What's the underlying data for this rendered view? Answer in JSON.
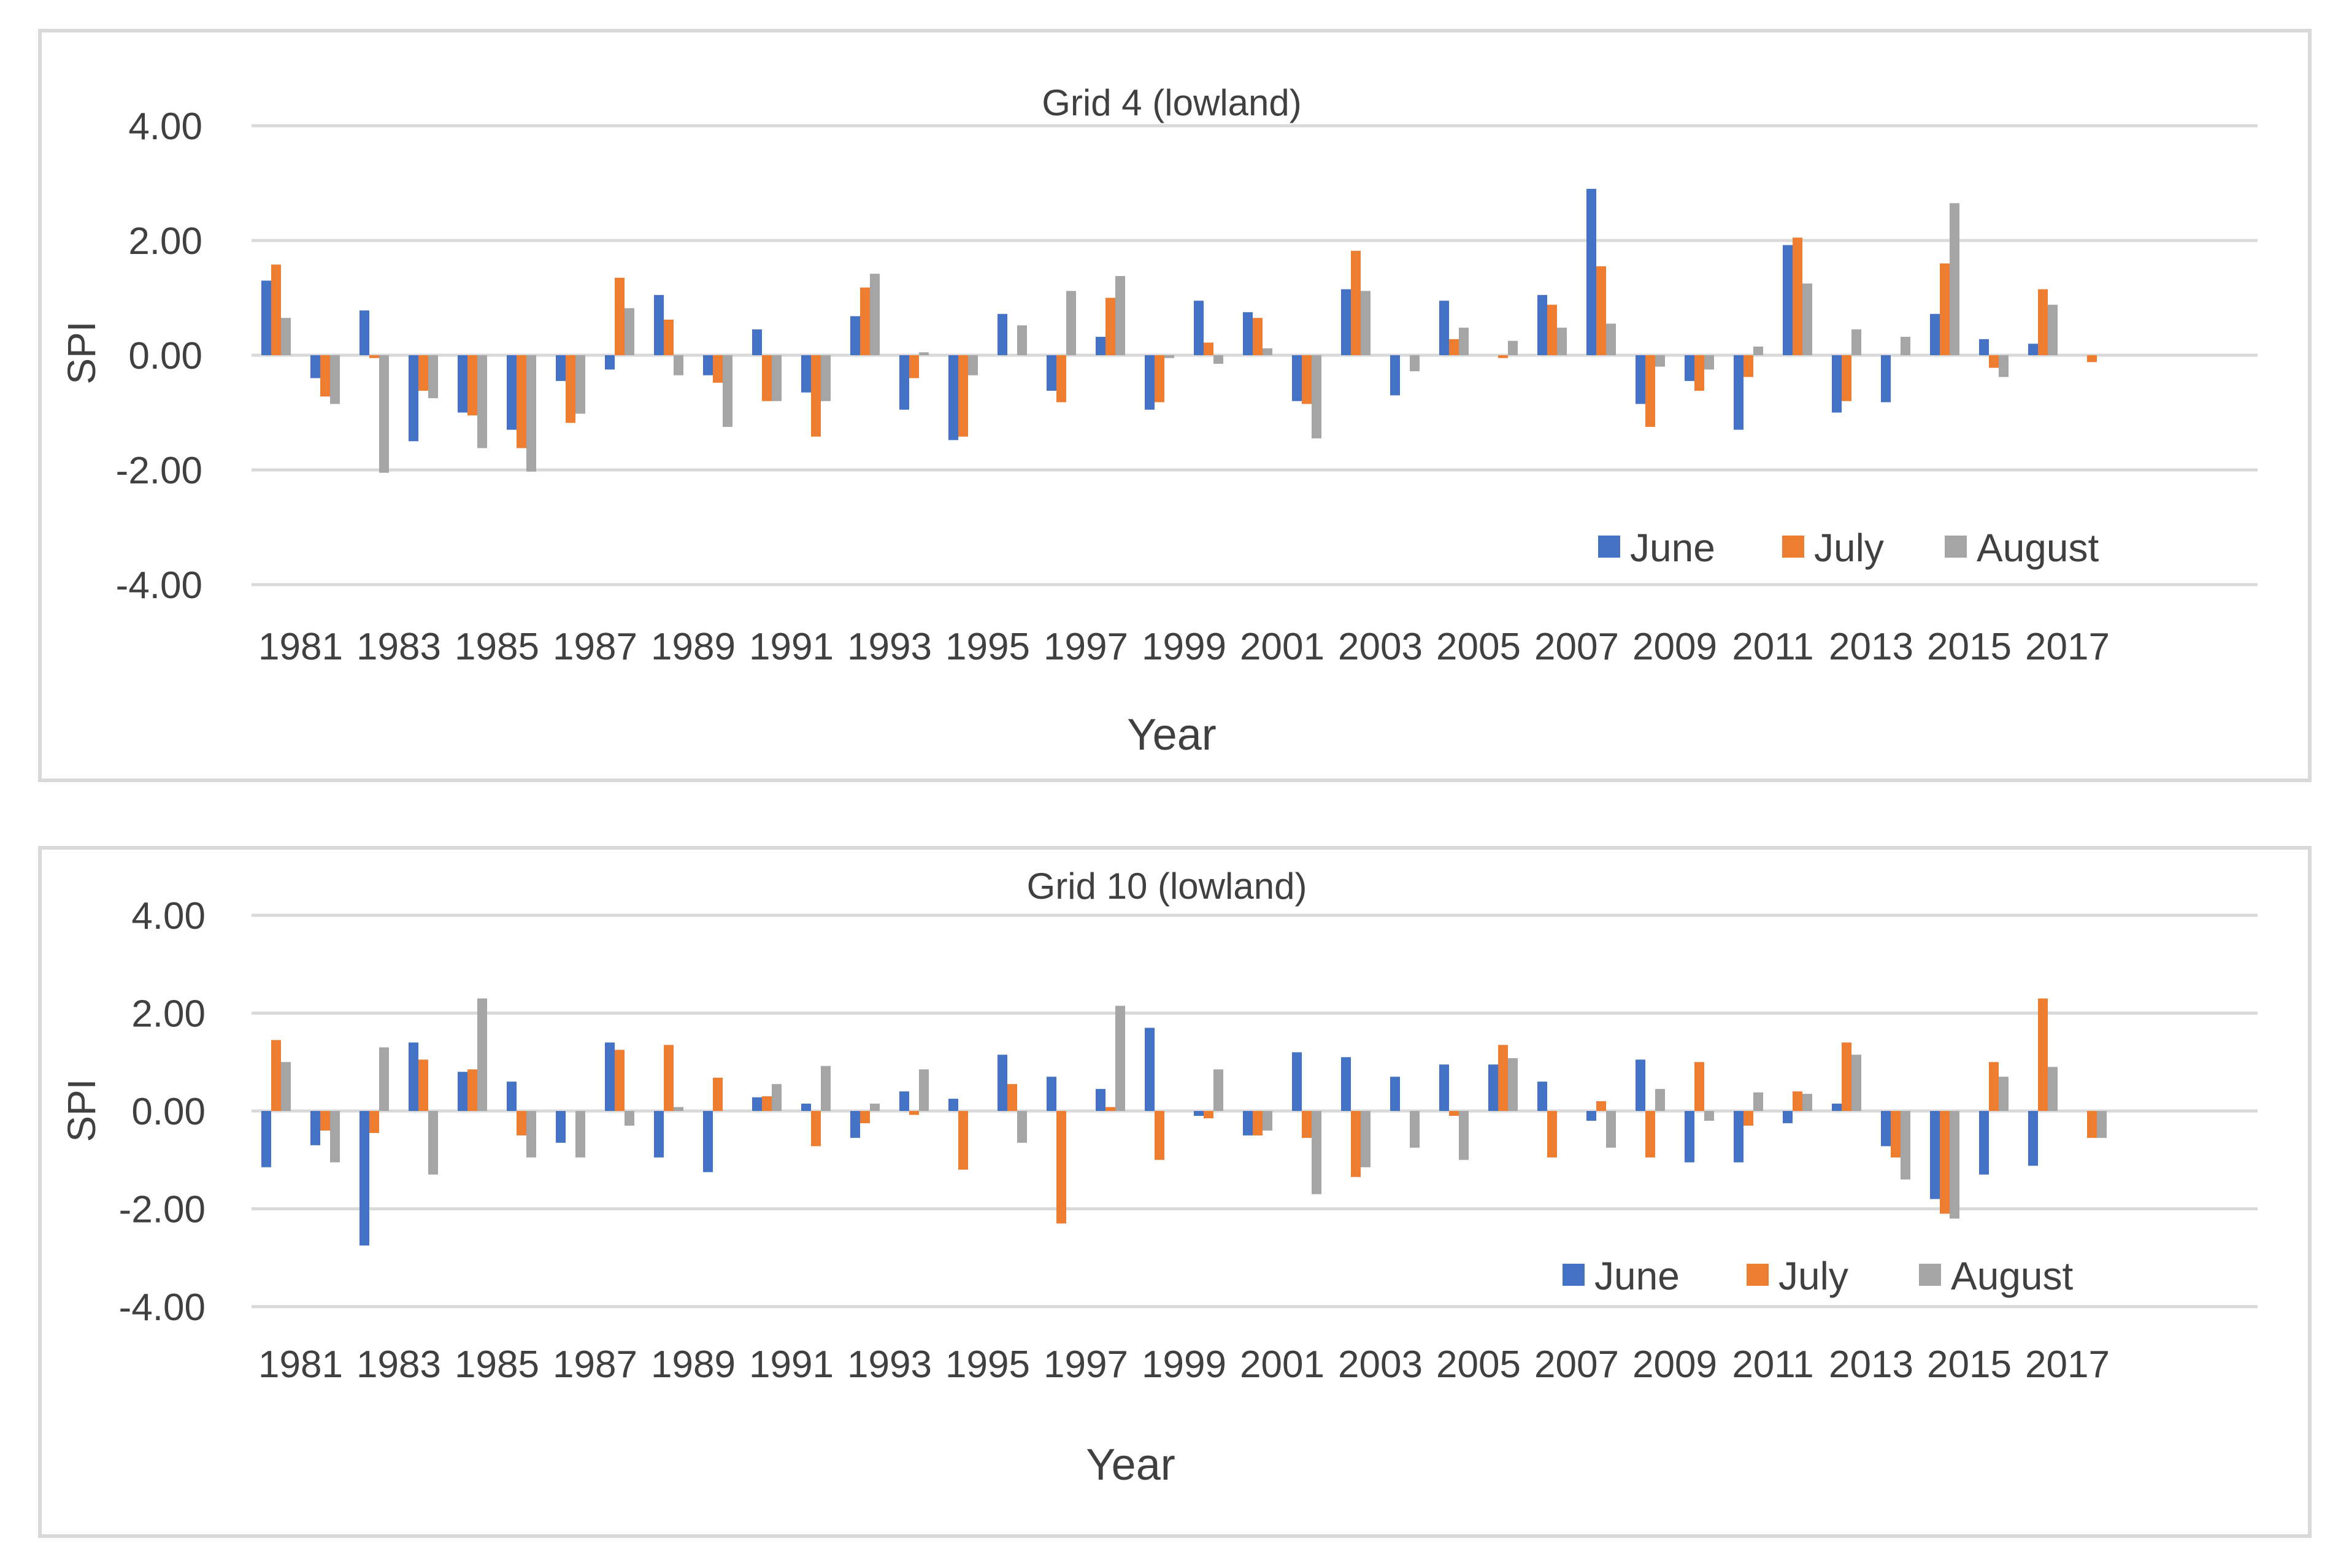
{
  "chart_data": [
    {
      "type": "bar",
      "title": "Grid 4 (lowland)",
      "xlabel": "Year",
      "ylabel": "SPI",
      "ylim": [
        -4,
        4
      ],
      "yticks": [
        "4.00",
        "2.00",
        "0.00",
        "-2.00",
        "-4.00"
      ],
      "ytick_values": [
        4,
        2,
        0,
        -2,
        -4
      ],
      "grid": true,
      "legend_position": "bottom-right",
      "categories": [
        "1981",
        "1982",
        "1983",
        "1984",
        "1985",
        "1986",
        "1987",
        "1988",
        "1989",
        "1990",
        "1991",
        "1992",
        "1993",
        "1994",
        "1995",
        "1996",
        "1997",
        "1998",
        "1999",
        "2000",
        "2001",
        "2002",
        "2003",
        "2004",
        "2005",
        "2006",
        "2007",
        "2008",
        "2009",
        "2010",
        "2011",
        "2012",
        "2013",
        "2014",
        "2015",
        "2016",
        "2017",
        "2018"
      ],
      "xtick_labels": [
        "1981",
        "",
        "1983",
        "",
        "1985",
        "",
        "1987",
        "",
        "1989",
        "",
        "1991",
        "",
        "1993",
        "",
        "1995",
        "",
        "1997",
        "",
        "1999",
        "",
        "2001",
        "",
        "2003",
        "",
        "2005",
        "",
        "2007",
        "",
        "2009",
        "",
        "2011",
        "",
        "2013",
        "",
        "2015",
        "",
        "2017",
        ""
      ],
      "colors": [
        "#4472C4",
        "#ED7D31",
        "#A5A5A5"
      ],
      "series": [
        {
          "name": "June",
          "values": [
            1.3,
            -0.4,
            0.78,
            -1.5,
            -1.0,
            -1.3,
            -0.45,
            -0.25,
            1.05,
            -0.35,
            0.45,
            -0.65,
            0.68,
            -0.95,
            -1.48,
            0.72,
            -0.62,
            0.32,
            -0.95,
            0.95,
            0.75,
            -0.8,
            1.15,
            -0.7,
            0.95,
            0.0,
            1.05,
            2.9,
            -0.85,
            -0.45,
            -1.3,
            1.92,
            -1.0,
            -0.82,
            0.72,
            0.28,
            0.2,
            0.0
          ]
        },
        {
          "name": "July",
          "values": [
            1.58,
            -0.72,
            -0.05,
            -0.62,
            -1.05,
            -1.62,
            -1.18,
            1.35,
            0.62,
            -0.48,
            -0.8,
            -1.42,
            1.18,
            -0.4,
            -1.42,
            0.0,
            -0.82,
            1.0,
            -0.82,
            0.22,
            0.65,
            -0.85,
            1.82,
            0.0,
            0.28,
            -0.05,
            0.88,
            1.55,
            -1.25,
            -0.62,
            -0.38,
            2.05,
            -0.8,
            0.0,
            1.6,
            -0.22,
            1.15,
            -0.12
          ]
        },
        {
          "name": "August",
          "values": [
            0.65,
            -0.85,
            -2.05,
            -0.75,
            -1.62,
            -2.03,
            -1.02,
            0.82,
            -0.35,
            -1.25,
            -0.8,
            -0.8,
            1.42,
            0.05,
            -0.35,
            0.52,
            1.12,
            1.38,
            -0.05,
            -0.15,
            0.12,
            -1.45,
            1.12,
            -0.28,
            0.48,
            0.25,
            0.48,
            0.55,
            -0.2,
            -0.25,
            0.15,
            1.25,
            0.45,
            0.32,
            2.65,
            -0.38,
            0.88,
            0.0
          ]
        }
      ]
    },
    {
      "type": "bar",
      "title": "Grid 10 (lowland)",
      "xlabel": "Year",
      "ylabel": "SPI",
      "ylim": [
        -4,
        4
      ],
      "yticks": [
        "4.00",
        "2.00",
        "0.00",
        "-2.00",
        "-4.00"
      ],
      "ytick_values": [
        4,
        2,
        0,
        -2,
        -4
      ],
      "grid": true,
      "legend_position": "bottom-right",
      "categories": [
        "1981",
        "1982",
        "1983",
        "1984",
        "1985",
        "1986",
        "1987",
        "1988",
        "1989",
        "1990",
        "1991",
        "1992",
        "1993",
        "1994",
        "1995",
        "1996",
        "1997",
        "1998",
        "1999",
        "2000",
        "2001",
        "2002",
        "2003",
        "2004",
        "2005",
        "2006",
        "2007",
        "2008",
        "2009",
        "2010",
        "2011",
        "2012",
        "2013",
        "2014",
        "2015",
        "2016",
        "2017",
        "2018"
      ],
      "xtick_labels": [
        "1981",
        "",
        "1983",
        "",
        "1985",
        "",
        "1987",
        "",
        "1989",
        "",
        "1991",
        "",
        "1993",
        "",
        "1995",
        "",
        "1997",
        "",
        "1999",
        "",
        "2001",
        "",
        "2003",
        "",
        "2005",
        "",
        "2007",
        "",
        "2009",
        "",
        "2011",
        "",
        "2013",
        "",
        "2015",
        "",
        "2017",
        ""
      ],
      "colors": [
        "#4472C4",
        "#ED7D31",
        "#A5A5A5"
      ],
      "series": [
        {
          "name": "June",
          "values": [
            -1.15,
            -0.7,
            -2.75,
            1.4,
            0.8,
            0.6,
            -0.65,
            1.4,
            -0.95,
            -1.25,
            0.28,
            0.15,
            -0.55,
            0.4,
            0.25,
            1.15,
            0.7,
            0.45,
            1.7,
            -0.1,
            -0.5,
            1.2,
            1.1,
            0.7,
            0.95,
            0.95,
            0.6,
            -0.2,
            1.05,
            -1.05,
            -1.05,
            -0.25,
            0.15,
            -0.72,
            -1.8,
            -1.3,
            -1.12,
            0.0
          ]
        },
        {
          "name": "July",
          "values": [
            1.45,
            -0.4,
            -0.45,
            1.05,
            0.85,
            -0.5,
            0.0,
            1.25,
            1.35,
            0.68,
            0.3,
            -0.72,
            -0.25,
            -0.08,
            -1.2,
            0.55,
            -2.3,
            0.08,
            -1.0,
            -0.15,
            -0.5,
            -0.55,
            -1.35,
            0.0,
            -0.1,
            1.35,
            -0.95,
            0.2,
            -0.95,
            1.0,
            -0.3,
            0.4,
            1.4,
            -0.95,
            -2.1,
            1.0,
            2.3,
            -0.55
          ]
        },
        {
          "name": "August",
          "values": [
            1.0,
            -1.05,
            1.3,
            -1.3,
            2.3,
            -0.95,
            -0.95,
            -0.3,
            0.08,
            0.0,
            0.55,
            0.92,
            0.15,
            0.85,
            0.0,
            -0.65,
            0.0,
            2.15,
            0.0,
            0.85,
            -0.4,
            -1.7,
            -1.15,
            -0.75,
            -1.0,
            1.08,
            0.0,
            -0.75,
            0.45,
            -0.2,
            0.38,
            0.35,
            1.15,
            -1.4,
            -2.2,
            0.7,
            0.9,
            -0.55
          ]
        }
      ]
    }
  ]
}
